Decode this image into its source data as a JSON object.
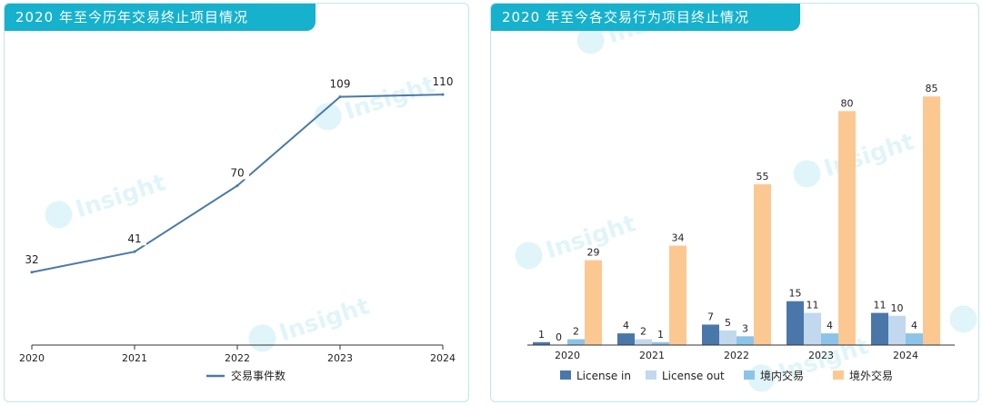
{
  "left_panel": {
    "title": "2020 年至今历年交易终止项目情况"
  },
  "right_panel": {
    "title": "2020 年至今各交易行为项目终止情况"
  },
  "watermark": {
    "text": "Insight"
  },
  "colors": {
    "title_bg": "#16b1cc",
    "panel_border": "#bfe6ef",
    "line": "#4a7aa6",
    "license_in": "#4a77aa",
    "license_out": "#c2d8ee",
    "domestic": "#8cc3e8",
    "overseas": "#fcc892"
  },
  "chart_data": [
    {
      "type": "line",
      "categories": [
        "2020",
        "2021",
        "2022",
        "2023",
        "2024"
      ],
      "series": [
        {
          "name": "交易事件数",
          "values": [
            32,
            41,
            70,
            109,
            110
          ]
        }
      ],
      "ylim": [
        0,
        130
      ],
      "grid": false,
      "legend": "bottom-center"
    },
    {
      "type": "bar",
      "categories": [
        "2020",
        "2021",
        "2022",
        "2023",
        "2024"
      ],
      "series": [
        {
          "name": "License in",
          "values": [
            1,
            4,
            7,
            15,
            11
          ]
        },
        {
          "name": "License out",
          "values": [
            0,
            2,
            5,
            11,
            10
          ]
        },
        {
          "name": "境内交易",
          "values": [
            2,
            1,
            3,
            4,
            4
          ]
        },
        {
          "name": "境外交易",
          "values": [
            29,
            34,
            55,
            80,
            85
          ]
        }
      ],
      "ylim": [
        0,
        95
      ],
      "grid": false,
      "legend": "bottom-center"
    }
  ]
}
